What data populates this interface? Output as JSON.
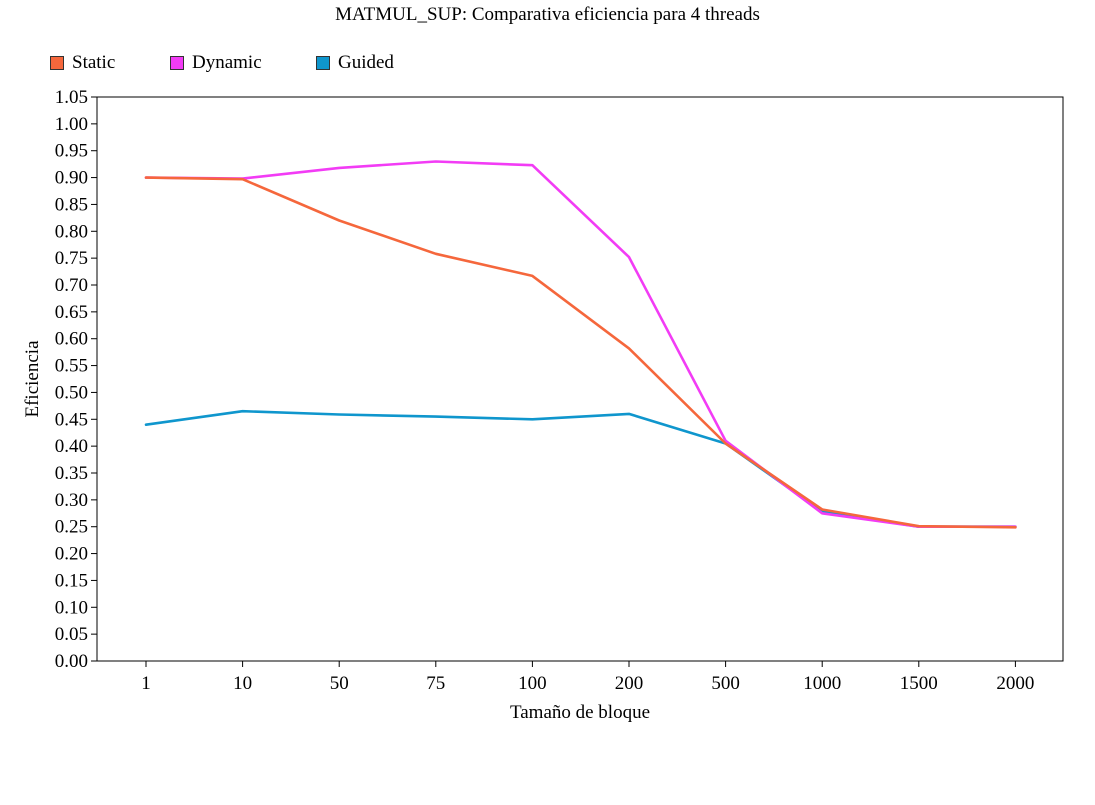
{
  "colors": {
    "Static": "#f5673c",
    "Dynamic": "#f23cf5",
    "Guided": "#0f96cd"
  },
  "chart_data": {
    "type": "line",
    "title": "MATMUL_SUP: Comparativa eficiencia para 4 threads",
    "xlabel": "Tamaño de bloque",
    "ylabel": "Eficiencia",
    "categories": [
      "1",
      "10",
      "50",
      "75",
      "100",
      "200",
      "500",
      "1000",
      "1500",
      "2000"
    ],
    "ylim": [
      0,
      1.05
    ],
    "ytick_step": 0.05,
    "yticks": [
      "0.00",
      "0.05",
      "0.10",
      "0.15",
      "0.20",
      "0.25",
      "0.30",
      "0.35",
      "0.40",
      "0.45",
      "0.50",
      "0.55",
      "0.60",
      "0.65",
      "0.70",
      "0.75",
      "0.80",
      "0.85",
      "0.90",
      "0.95",
      "1.00",
      "1.05"
    ],
    "grid": false,
    "legend_position": "top-left",
    "series": [
      {
        "name": "Static",
        "values": [
          0.9,
          0.897,
          0.82,
          0.758,
          0.717,
          0.582,
          0.405,
          0.282,
          0.251,
          0.249
        ]
      },
      {
        "name": "Dynamic",
        "values": [
          0.9,
          0.898,
          0.918,
          0.93,
          0.923,
          0.752,
          0.41,
          0.275,
          0.25,
          0.25
        ]
      },
      {
        "name": "Guided",
        "values": [
          0.44,
          0.465,
          0.459,
          0.455,
          0.45,
          0.46,
          0.405,
          0.278,
          0.25,
          0.25
        ]
      }
    ]
  }
}
